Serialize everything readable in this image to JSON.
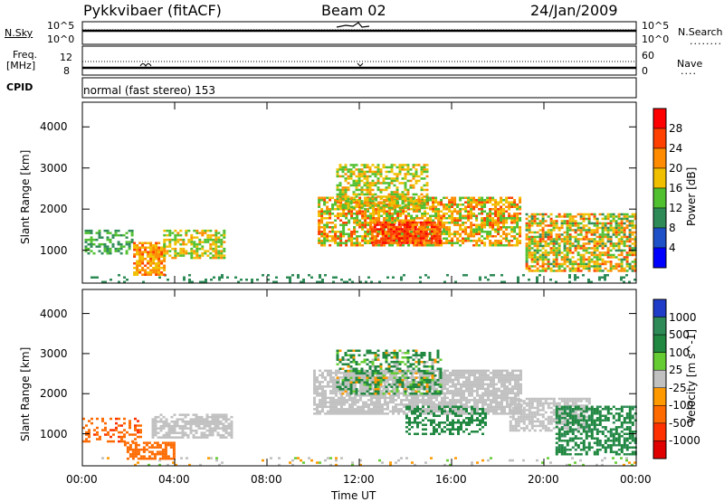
{
  "header": {
    "radar": "Pykkvibaer (fitACF)",
    "beam": "Beam 02",
    "date": "24/Jan/2009"
  },
  "sky_panel": {
    "left_label": "N.Sky",
    "right_label": "N.Search",
    "left_ticks": [
      "10^5",
      "10^0"
    ],
    "right_ticks": [
      "10^5",
      "10^0"
    ]
  },
  "freq_panel": {
    "left_label": "Freq.",
    "left_unit": "[MHz]",
    "right_label": "Nave",
    "left_ticks": [
      "12",
      "8"
    ],
    "right_ticks": [
      "60",
      "0"
    ]
  },
  "cpid": {
    "label": "CPID",
    "mode": "normal (fast stereo) 153"
  },
  "axes": {
    "xlabel": "Time UT",
    "xticks": [
      "00:00",
      "04:00",
      "08:00",
      "12:00",
      "16:00",
      "20:00",
      "00:00"
    ],
    "ylabel": "Slant Range [km]",
    "yticks": [
      "4000",
      "3000",
      "2000",
      "1000"
    ]
  },
  "colorbars": {
    "power": {
      "title": "Power [dB]",
      "labels": [
        "28",
        "24",
        "20",
        "16",
        "12",
        "8",
        "4"
      ],
      "colors": [
        "#ff0000",
        "#ff4000",
        "#ff8c00",
        "#f0c000",
        "#50c030",
        "#2e8b57",
        "#1e50c8",
        "#0000ff"
      ]
    },
    "velocity": {
      "title": "Velocity [m s^-1]",
      "labels": [
        "1000",
        "500",
        "100",
        "25",
        "-25",
        "-100",
        "-500",
        "-1000"
      ],
      "colors": [
        "#1e3cc8",
        "#2e8b57",
        "#208840",
        "#66cc33",
        "#c0c0c0",
        "#ff9900",
        "#ff6a00",
        "#ff3000",
        "#e00000"
      ]
    }
  },
  "chart_data": [
    {
      "type": "heatmap",
      "title": "Power [dB]",
      "xlabel": "Time UT",
      "ylabel": "Slant Range [km]",
      "xlim": [
        0,
        24
      ],
      "ylim": [
        200,
        4600
      ],
      "zlim": [
        0,
        30
      ],
      "regions": [
        {
          "t0": 0.0,
          "t1": 24.0,
          "r0": 250,
          "r1": 420,
          "power": [
            6,
            8
          ],
          "density": 0.18
        },
        {
          "t0": 0.1,
          "t1": 2.2,
          "r0": 900,
          "r1": 1500,
          "power": [
            6,
            14
          ],
          "density": 0.5
        },
        {
          "t0": 2.2,
          "t1": 3.6,
          "r0": 400,
          "r1": 1200,
          "power": [
            14,
            24
          ],
          "density": 0.8
        },
        {
          "t0": 3.5,
          "t1": 6.2,
          "r0": 800,
          "r1": 1500,
          "power": [
            10,
            20
          ],
          "density": 0.6
        },
        {
          "t0": 10.2,
          "t1": 19.0,
          "r0": 1100,
          "r1": 2300,
          "power": [
            10,
            24
          ],
          "density": 0.7
        },
        {
          "t0": 11.0,
          "t1": 15.0,
          "r0": 2000,
          "r1": 3100,
          "power": [
            10,
            20
          ],
          "density": 0.6
        },
        {
          "t0": 12.5,
          "t1": 15.5,
          "r0": 1200,
          "r1": 1700,
          "power": [
            20,
            28
          ],
          "density": 0.8
        },
        {
          "t0": 19.2,
          "t1": 24.0,
          "r0": 500,
          "r1": 1900,
          "power": [
            8,
            24
          ],
          "density": 0.7
        }
      ]
    },
    {
      "type": "heatmap",
      "title": "Velocity [m s^-1]",
      "xlabel": "Time UT",
      "ylabel": "Slant Range [km]",
      "xlim": [
        0,
        24
      ],
      "ylim": [
        200,
        4600
      ],
      "zlim": [
        -1000,
        1000
      ],
      "regions": [
        {
          "t0": 0.0,
          "t1": 24.0,
          "r0": 250,
          "r1": 420,
          "velocity": [
            -50,
            50
          ],
          "density": 0.12
        },
        {
          "t0": 0.0,
          "t1": 2.5,
          "r0": 800,
          "r1": 1400,
          "velocity": [
            -600,
            -100
          ],
          "density": 0.4
        },
        {
          "t0": 1.8,
          "t1": 4.0,
          "r0": 350,
          "r1": 800,
          "velocity": [
            -500,
            -100
          ],
          "density": 0.6
        },
        {
          "t0": 3.0,
          "t1": 6.5,
          "r0": 900,
          "r1": 1500,
          "velocity": [
            -25,
            25
          ],
          "density": 0.7
        },
        {
          "t0": 10.0,
          "t1": 19.0,
          "r0": 1500,
          "r1": 2600,
          "velocity": [
            -25,
            25
          ],
          "density": 0.8
        },
        {
          "t0": 11.0,
          "t1": 15.5,
          "r0": 2000,
          "r1": 3100,
          "velocity": [
            -100,
            500
          ],
          "density": 0.5
        },
        {
          "t0": 14.0,
          "t1": 17.5,
          "r0": 1000,
          "r1": 1700,
          "velocity": [
            100,
            500
          ],
          "density": 0.5
        },
        {
          "t0": 18.5,
          "t1": 22.0,
          "r0": 1100,
          "r1": 1900,
          "velocity": [
            -25,
            25
          ],
          "density": 0.7
        },
        {
          "t0": 20.5,
          "t1": 24.0,
          "r0": 500,
          "r1": 1700,
          "velocity": [
            100,
            600
          ],
          "density": 0.6
        }
      ]
    }
  ]
}
